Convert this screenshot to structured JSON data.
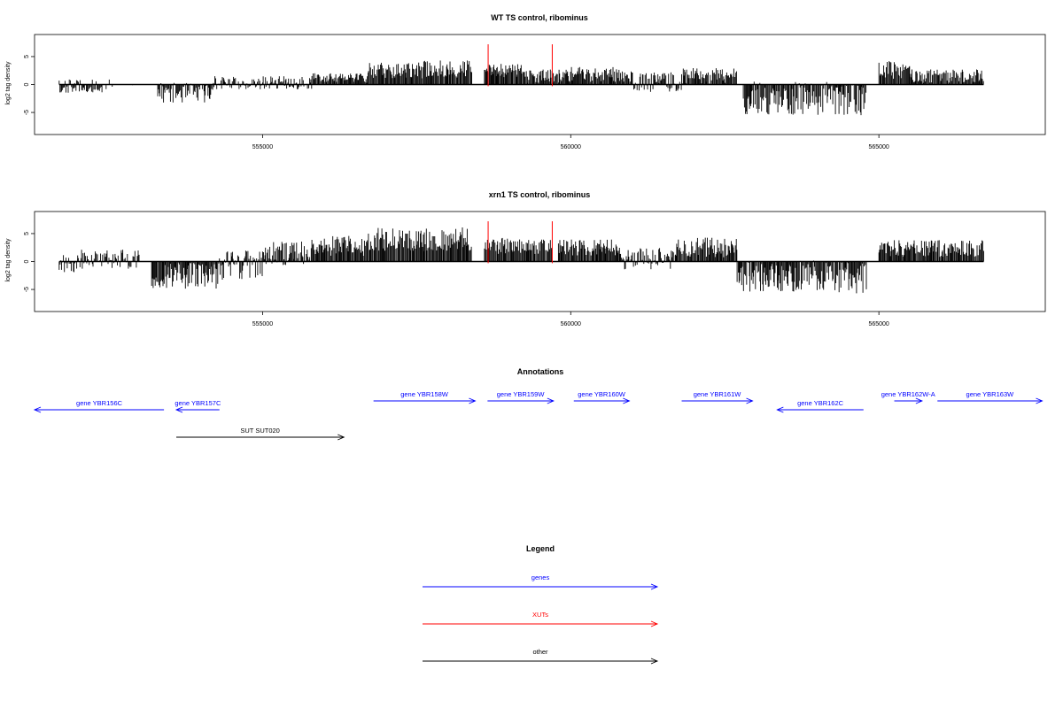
{
  "chart_data": [
    {
      "type": "bar",
      "title": "WT TS control, ribominus",
      "xlabel": "",
      "ylabel": "log2 tag density",
      "xlim": [
        551300,
        567700
      ],
      "ylim": [
        -8,
        8
      ],
      "x_ticks": [
        555000,
        560000,
        565000
      ],
      "x_tick_labels": [
        "555000",
        "560000",
        "565000"
      ],
      "y_ticks": [
        5,
        0,
        -5
      ],
      "y_tick_labels": [
        "5",
        "0",
        "-5"
      ],
      "baseline": {
        "from": 551700,
        "to": 566700,
        "y": 0
      },
      "markers": {
        "positions": [
          558660,
          559700
        ],
        "range": [
          -0.3,
          7.2
        ],
        "color": "#ff0000"
      },
      "profile": [
        {
          "from": 551700,
          "to": 552400,
          "v": -0.8,
          "a": 0.6
        },
        {
          "from": 552400,
          "to": 553200,
          "v": 0.0,
          "a": 0.8
        },
        {
          "from": 553300,
          "to": 554200,
          "v": -1.5,
          "a": 1.5
        },
        {
          "from": 554200,
          "to": 555800,
          "v": 0.3,
          "a": 1.0
        },
        {
          "from": 555800,
          "to": 556700,
          "v": 1.2,
          "a": 0.8
        },
        {
          "from": 556700,
          "to": 557600,
          "v": 2.5,
          "a": 1.2
        },
        {
          "from": 557600,
          "to": 558400,
          "v": 2.8,
          "a": 1.3
        },
        {
          "from": 558600,
          "to": 559300,
          "v": 2.5,
          "a": 1.0
        },
        {
          "from": 559300,
          "to": 559900,
          "v": 1.5,
          "a": 1.0
        },
        {
          "from": 559900,
          "to": 561000,
          "v": 1.8,
          "a": 1.1
        },
        {
          "from": 561000,
          "to": 561800,
          "v": 1.0,
          "a": 1.0
        },
        {
          "from": 561800,
          "to": 562700,
          "v": 1.5,
          "a": 1.2
        },
        {
          "from": 562800,
          "to": 564800,
          "v": -2.5,
          "a": 2.5
        },
        {
          "from": 565000,
          "to": 565500,
          "v": 2.5,
          "a": 1.4
        },
        {
          "from": 565500,
          "to": 566700,
          "v": 1.5,
          "a": 1.0
        }
      ],
      "series": [
        {
          "color": "#000000"
        }
      ]
    },
    {
      "type": "bar",
      "title": "xrn1 TS control, ribominus",
      "xlabel": "",
      "ylabel": "log2 tag density",
      "xlim": [
        551300,
        567700
      ],
      "ylim": [
        -8,
        8
      ],
      "x_ticks": [
        555000,
        560000,
        565000
      ],
      "x_tick_labels": [
        "555000",
        "560000",
        "565000"
      ],
      "y_ticks": [
        5,
        0,
        -5
      ],
      "y_tick_labels": [
        "5",
        "0",
        "-5"
      ],
      "baseline": {
        "from": 551700,
        "to": 566700,
        "y": 0
      },
      "markers": {
        "positions": [
          558660,
          559700
        ],
        "range": [
          -0.3,
          7.2
        ],
        "color": "#ff0000"
      },
      "profile": [
        {
          "from": 551700,
          "to": 552000,
          "v": -1.0,
          "a": 0.8
        },
        {
          "from": 552000,
          "to": 553000,
          "v": 1.0,
          "a": 1.0
        },
        {
          "from": 553200,
          "to": 554300,
          "v": -2.5,
          "a": 2.0
        },
        {
          "from": 554300,
          "to": 555000,
          "v": -1.0,
          "a": 2.0
        },
        {
          "from": 555000,
          "to": 555800,
          "v": 1.5,
          "a": 1.8
        },
        {
          "from": 555800,
          "to": 556700,
          "v": 2.8,
          "a": 1.5
        },
        {
          "from": 556700,
          "to": 558400,
          "v": 4.0,
          "a": 1.8
        },
        {
          "from": 558600,
          "to": 559700,
          "v": 2.8,
          "a": 1.2
        },
        {
          "from": 559800,
          "to": 560800,
          "v": 2.5,
          "a": 1.2
        },
        {
          "from": 560800,
          "to": 561700,
          "v": 1.0,
          "a": 1.2
        },
        {
          "from": 561700,
          "to": 562700,
          "v": 2.5,
          "a": 1.5
        },
        {
          "from": 562700,
          "to": 564800,
          "v": -2.8,
          "a": 2.5
        },
        {
          "from": 565000,
          "to": 566700,
          "v": 2.3,
          "a": 1.3
        }
      ],
      "series": [
        {
          "color": "#000000"
        }
      ]
    }
  ],
  "annotations": {
    "title": "Annotations",
    "features": [
      {
        "label": "gene YBR156C",
        "type": "genes",
        "strand": "-",
        "start": 551300,
        "end": 553400,
        "row": 1
      },
      {
        "label": "gene YBR157C",
        "type": "genes",
        "strand": "-",
        "start": 553600,
        "end": 554300,
        "row": 1
      },
      {
        "label": "SUT SUT020",
        "type": "other",
        "strand": "+",
        "start": 553600,
        "end": 556320,
        "row": 2
      },
      {
        "label": "gene YBR158W",
        "type": "genes",
        "strand": "+",
        "start": 556800,
        "end": 558450,
        "row": 0
      },
      {
        "label": "gene YBR159W",
        "type": "genes",
        "strand": "+",
        "start": 558650,
        "end": 559720,
        "row": 0
      },
      {
        "label": "gene YBR160W",
        "type": "genes",
        "strand": "+",
        "start": 560050,
        "end": 560950,
        "row": 0
      },
      {
        "label": "gene YBR161W",
        "type": "genes",
        "strand": "+",
        "start": 561800,
        "end": 562950,
        "row": 0
      },
      {
        "label": "gene YBR162C",
        "type": "genes",
        "strand": "-",
        "start": 563350,
        "end": 564750,
        "row": 1
      },
      {
        "label": "gene YBR162W-A",
        "type": "genes",
        "strand": "+",
        "start": 565250,
        "end": 565700,
        "row": 0
      },
      {
        "label": "gene YBR163W",
        "type": "genes",
        "strand": "+",
        "start": 565950,
        "end": 567650,
        "row": 0
      }
    ]
  },
  "legend": {
    "title": "Legend",
    "items": [
      {
        "key": "genes",
        "label": "genes",
        "color": "#0000ff"
      },
      {
        "key": "XUTs",
        "label": "XUTs",
        "color": "#ff0000"
      },
      {
        "key": "other",
        "label": "other",
        "color": "#000000"
      }
    ]
  }
}
